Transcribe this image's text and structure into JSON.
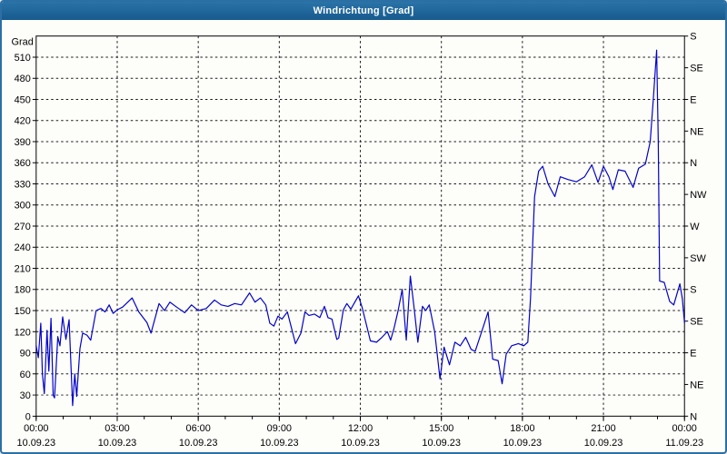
{
  "window": {
    "title": "Windrichtung [Grad]"
  },
  "colors": {
    "titlebar_top": "#2a74a8",
    "titlebar_bottom": "#175a8e",
    "window_border": "#2b6fa5",
    "background": "#fdfdfa",
    "plot_frame": "#000000",
    "grid": "#1a1a1a",
    "text": "#000000",
    "line": "#0202c8"
  },
  "chart_data": {
    "type": "line",
    "title": "Windrichtung [Grad]",
    "ylabel_left": "Grad",
    "ylim": [
      0,
      540
    ],
    "xlim_hours": [
      0,
      24
    ],
    "grid": "dashed",
    "legend": "none",
    "y_left_ticks": [
      0,
      30,
      60,
      90,
      120,
      150,
      180,
      210,
      240,
      270,
      300,
      330,
      360,
      390,
      420,
      450,
      480,
      510
    ],
    "y_right_ticks": [
      {
        "value": 0,
        "label": "N"
      },
      {
        "value": 45,
        "label": "NE"
      },
      {
        "value": 90,
        "label": "E"
      },
      {
        "value": 135,
        "label": "SE"
      },
      {
        "value": 180,
        "label": "S"
      },
      {
        "value": 225,
        "label": "SW"
      },
      {
        "value": 270,
        "label": "W"
      },
      {
        "value": 315,
        "label": "NW"
      },
      {
        "value": 360,
        "label": "N"
      },
      {
        "value": 405,
        "label": "NE"
      },
      {
        "value": 450,
        "label": "E"
      },
      {
        "value": 495,
        "label": "SE"
      },
      {
        "value": 540,
        "label": "S"
      }
    ],
    "x_major_ticks": [
      {
        "hour": 0,
        "time": "00:00",
        "date": "10.09.23"
      },
      {
        "hour": 3,
        "time": "03:00",
        "date": "10.09.23"
      },
      {
        "hour": 6,
        "time": "06:00",
        "date": "10.09.23"
      },
      {
        "hour": 9,
        "time": "09:00",
        "date": "10.09.23"
      },
      {
        "hour": 12,
        "time": "12:00",
        "date": "10.09.23"
      },
      {
        "hour": 15,
        "time": "15:00",
        "date": "10.09.23"
      },
      {
        "hour": 18,
        "time": "18:00",
        "date": "10.09.23"
      },
      {
        "hour": 21,
        "time": "21:00",
        "date": "10.09.23"
      },
      {
        "hour": 24,
        "time": "00:00",
        "date": "11.09.23"
      }
    ],
    "x_minor_every_hours": 1,
    "series": [
      {
        "name": "Windrichtung",
        "color": "#0202c8",
        "points": [
          [
            0,
            100
          ],
          [
            0.08,
            83
          ],
          [
            0.17,
            132
          ],
          [
            0.23,
            60
          ],
          [
            0.3,
            32
          ],
          [
            0.4,
            122
          ],
          [
            0.47,
            64
          ],
          [
            0.55,
            139
          ],
          [
            0.63,
            30
          ],
          [
            0.68,
            26
          ],
          [
            0.8,
            113
          ],
          [
            0.88,
            100
          ],
          [
            0.98,
            141
          ],
          [
            1.1,
            109
          ],
          [
            1.22,
            137
          ],
          [
            1.35,
            15
          ],
          [
            1.43,
            60
          ],
          [
            1.5,
            28
          ],
          [
            1.62,
            96
          ],
          [
            1.72,
            118
          ],
          [
            1.88,
            115
          ],
          [
            2.02,
            108
          ],
          [
            2.22,
            150
          ],
          [
            2.4,
            153
          ],
          [
            2.55,
            148
          ],
          [
            2.7,
            158
          ],
          [
            2.85,
            146
          ],
          [
            3,
            151
          ],
          [
            3.2,
            155
          ],
          [
            3.55,
            168
          ],
          [
            3.8,
            148
          ],
          [
            4.1,
            133
          ],
          [
            4.25,
            118
          ],
          [
            4.55,
            160
          ],
          [
            4.75,
            150
          ],
          [
            4.95,
            162
          ],
          [
            5.2,
            155
          ],
          [
            5.5,
            147
          ],
          [
            5.75,
            158
          ],
          [
            6,
            150
          ],
          [
            6.3,
            153
          ],
          [
            6.6,
            165
          ],
          [
            6.85,
            158
          ],
          [
            7.1,
            156
          ],
          [
            7.35,
            160
          ],
          [
            7.6,
            158
          ],
          [
            7.9,
            175
          ],
          [
            8.1,
            162
          ],
          [
            8.3,
            168
          ],
          [
            8.5,
            158
          ],
          [
            8.65,
            132
          ],
          [
            8.8,
            128
          ],
          [
            8.95,
            142
          ],
          [
            9.1,
            138
          ],
          [
            9.3,
            148
          ],
          [
            9.6,
            103
          ],
          [
            9.8,
            118
          ],
          [
            9.95,
            148
          ],
          [
            10.1,
            143
          ],
          [
            10.3,
            145
          ],
          [
            10.5,
            140
          ],
          [
            10.67,
            156
          ],
          [
            10.8,
            140
          ],
          [
            10.95,
            138
          ],
          [
            11.13,
            109
          ],
          [
            11.2,
            111
          ],
          [
            11.37,
            151
          ],
          [
            11.5,
            160
          ],
          [
            11.65,
            152
          ],
          [
            11.93,
            171
          ],
          [
            12.07,
            154
          ],
          [
            12.37,
            107
          ],
          [
            12.6,
            105
          ],
          [
            12.8,
            112
          ],
          [
            13,
            120
          ],
          [
            13.12,
            108
          ],
          [
            13.25,
            125
          ],
          [
            13.4,
            150
          ],
          [
            13.55,
            180
          ],
          [
            13.7,
            108
          ],
          [
            13.85,
            199
          ],
          [
            14,
            150
          ],
          [
            14.13,
            105
          ],
          [
            14.3,
            156
          ],
          [
            14.42,
            150
          ],
          [
            14.55,
            158
          ],
          [
            14.75,
            120
          ],
          [
            14.95,
            53
          ],
          [
            15.1,
            98
          ],
          [
            15.3,
            73
          ],
          [
            15.5,
            105
          ],
          [
            15.7,
            100
          ],
          [
            15.9,
            112
          ],
          [
            16.1,
            95
          ],
          [
            16.25,
            92
          ],
          [
            16.45,
            115
          ],
          [
            16.73,
            148
          ],
          [
            16.9,
            81
          ],
          [
            17.1,
            79
          ],
          [
            17.25,
            46
          ],
          [
            17.4,
            88
          ],
          [
            17.6,
            100
          ],
          [
            17.85,
            103
          ],
          [
            18.05,
            100
          ],
          [
            18.2,
            105
          ],
          [
            18.3,
            167
          ],
          [
            18.45,
            312
          ],
          [
            18.6,
            348
          ],
          [
            18.75,
            355
          ],
          [
            18.95,
            330
          ],
          [
            19.2,
            312
          ],
          [
            19.4,
            340
          ],
          [
            19.7,
            336
          ],
          [
            20,
            333
          ],
          [
            20.3,
            340
          ],
          [
            20.57,
            357
          ],
          [
            20.8,
            332
          ],
          [
            21,
            355
          ],
          [
            21.2,
            340
          ],
          [
            21.35,
            322
          ],
          [
            21.55,
            350
          ],
          [
            21.8,
            348
          ],
          [
            22.1,
            325
          ],
          [
            22.3,
            352
          ],
          [
            22.55,
            358
          ],
          [
            22.73,
            390
          ],
          [
            22.85,
            452
          ],
          [
            22.97,
            520
          ],
          [
            23.03,
            390
          ],
          [
            23.08,
            192
          ],
          [
            23.25,
            190
          ],
          [
            23.45,
            163
          ],
          [
            23.6,
            158
          ],
          [
            23.83,
            188
          ],
          [
            23.92,
            167
          ],
          [
            24,
            133
          ]
        ]
      }
    ]
  }
}
